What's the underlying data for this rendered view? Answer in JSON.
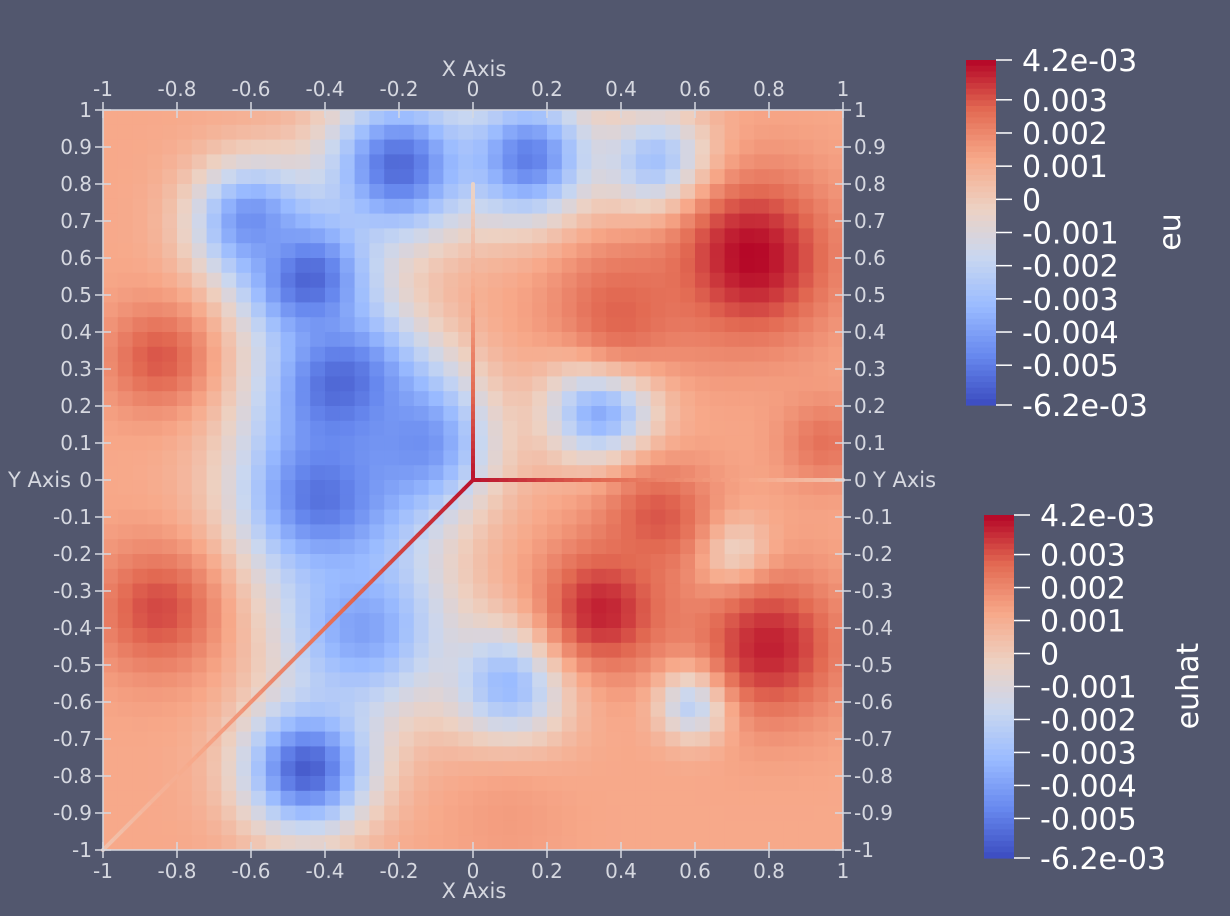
{
  "colors": {
    "background": "#52576e",
    "axis": "#d6d8e0",
    "colormap": [
      "#3b4cc0",
      "#6788ee",
      "#9abbff",
      "#c9d7f0",
      "#edd1c2",
      "#f7a889",
      "#e26952",
      "#b40426"
    ]
  },
  "chart_data": {
    "type": "heatmap",
    "xlabel": "X Axis",
    "ylabel": "Y Axis",
    "xlim": [
      -1,
      1
    ],
    "ylim": [
      -1,
      1
    ],
    "x_ticks": [
      "-1",
      "-0.8",
      "-0.6",
      "-0.4",
      "-0.2",
      "0",
      "0.2",
      "0.4",
      "0.6",
      "0.8",
      "1"
    ],
    "y_ticks": [
      "1",
      "0.9",
      "0.8",
      "0.7",
      "0.6",
      "0.5",
      "0.4",
      "0.3",
      "0.2",
      "0.1",
      "0",
      "-0.1",
      "-0.2",
      "-0.3",
      "-0.4",
      "-0.5",
      "-0.6",
      "-0.7",
      "-0.8",
      "-0.9",
      "-1"
    ],
    "grid": false,
    "field": {
      "name": "eu",
      "background_value": 0.0012,
      "features": [
        {
          "x": -0.35,
          "y": 0.25,
          "value": -0.0058,
          "radius": 0.28
        },
        {
          "x": -0.45,
          "y": 0.55,
          "value": -0.0058,
          "radius": 0.22
        },
        {
          "x": -0.2,
          "y": 0.85,
          "value": -0.0055,
          "radius": 0.25
        },
        {
          "x": 0.15,
          "y": 0.87,
          "value": -0.005,
          "radius": 0.22
        },
        {
          "x": 0.5,
          "y": 0.85,
          "value": -0.0035,
          "radius": 0.18
        },
        {
          "x": -0.6,
          "y": 0.7,
          "value": -0.0045,
          "radius": 0.2
        },
        {
          "x": -0.4,
          "y": -0.05,
          "value": -0.0055,
          "radius": 0.3
        },
        {
          "x": -0.3,
          "y": -0.4,
          "value": -0.004,
          "radius": 0.3
        },
        {
          "x": -0.45,
          "y": -0.78,
          "value": -0.0058,
          "radius": 0.22
        },
        {
          "x": -0.15,
          "y": 0.1,
          "value": -0.0045,
          "radius": 0.25
        },
        {
          "x": 0.35,
          "y": 0.2,
          "value": -0.005,
          "radius": 0.18
        },
        {
          "x": 0.1,
          "y": -0.55,
          "value": -0.0035,
          "radius": 0.2
        },
        {
          "x": 0.6,
          "y": -0.6,
          "value": -0.0035,
          "radius": 0.12
        },
        {
          "x": 0.7,
          "y": -0.2,
          "value": -0.0015,
          "radius": 0.12
        },
        {
          "x": 0.75,
          "y": 0.6,
          "value": 0.0042,
          "radius": 0.28
        },
        {
          "x": 0.4,
          "y": 0.45,
          "value": 0.0028,
          "radius": 0.25
        },
        {
          "x": -0.85,
          "y": 0.33,
          "value": 0.003,
          "radius": 0.18
        },
        {
          "x": -0.85,
          "y": -0.35,
          "value": 0.0032,
          "radius": 0.22
        },
        {
          "x": 0.35,
          "y": -0.35,
          "value": 0.0038,
          "radius": 0.22
        },
        {
          "x": 0.8,
          "y": -0.45,
          "value": 0.0038,
          "radius": 0.25
        },
        {
          "x": 0.5,
          "y": -0.1,
          "value": 0.003,
          "radius": 0.2
        },
        {
          "x": 0.95,
          "y": 0.1,
          "value": 0.0025,
          "radius": 0.15
        },
        {
          "x": 0.1,
          "y": -0.92,
          "value": 0.0015,
          "radius": 0.2
        }
      ]
    },
    "line_plot": {
      "name": "euhat",
      "segments": [
        {
          "from": [
            0,
            0.8
          ],
          "to": [
            0,
            0
          ],
          "values": [
            -0.0005,
            0.004
          ]
        },
        {
          "from": [
            0,
            0
          ],
          "to": [
            1,
            0
          ],
          "values": [
            0.004,
            0.0003
          ]
        },
        {
          "from": [
            0,
            0
          ],
          "to": [
            -1,
            -1
          ],
          "values": [
            0.004,
            0.0003
          ]
        }
      ]
    },
    "colorbars": [
      {
        "title": "eu",
        "min": -0.0062,
        "max": 0.0042,
        "min_label": "-6.2e-03",
        "max_label": "4.2e-03",
        "ticks": [
          0.003,
          0.002,
          0.001,
          0,
          -0.001,
          -0.002,
          -0.003,
          -0.004,
          -0.005
        ],
        "tick_labels": [
          "0.003",
          "0.002",
          "0.001",
          "0",
          "-0.001",
          "-0.002",
          "-0.003",
          "-0.004",
          "-0.005"
        ]
      },
      {
        "title": "euhat",
        "min": -0.0062,
        "max": 0.0042,
        "min_label": "-6.2e-03",
        "max_label": "4.2e-03",
        "ticks": [
          0.003,
          0.002,
          0.001,
          0,
          -0.001,
          -0.002,
          -0.003,
          -0.004,
          -0.005
        ],
        "tick_labels": [
          "0.003",
          "0.002",
          "0.001",
          "0",
          "-0.001",
          "-0.002",
          "-0.003",
          "-0.004",
          "-0.005"
        ]
      }
    ]
  }
}
